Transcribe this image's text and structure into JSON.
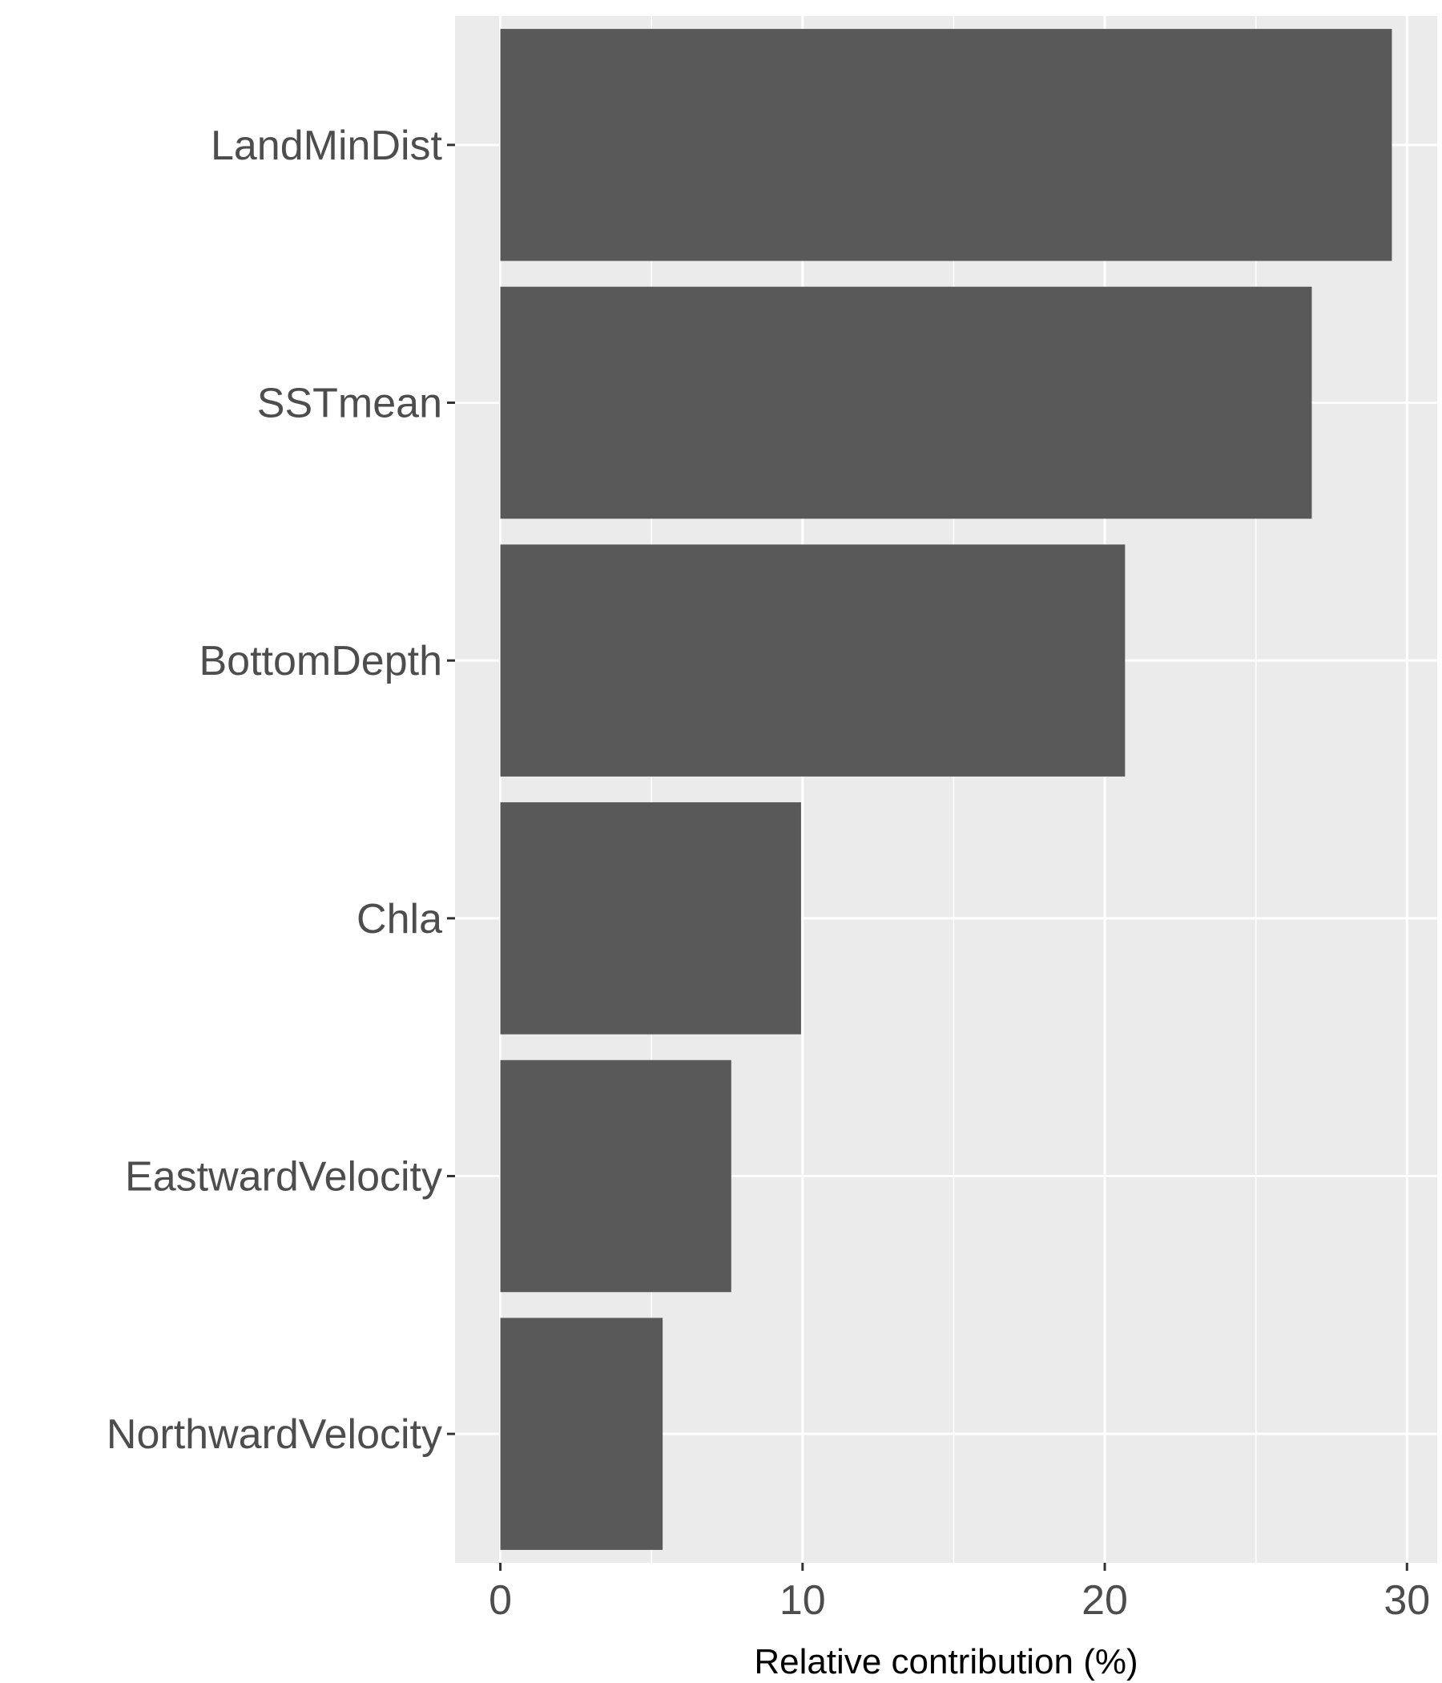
{
  "chart_data": {
    "type": "bar",
    "orientation": "horizontal",
    "categories": [
      "LandMinDist",
      "SSTmean",
      "BottomDepth",
      "Chla",
      "EastwardVelocity",
      "NorthwardVelocity"
    ],
    "values": [
      29.5,
      26.85,
      20.67,
      9.95,
      7.64,
      5.37
    ],
    "xlabel": "Relative contribution (%)",
    "ylabel": "",
    "xlim": [
      -1.5,
      31.0
    ],
    "x_ticks": [
      0,
      10,
      20,
      30
    ],
    "x_minor_ticks": [
      5,
      15,
      25
    ],
    "grid": true,
    "colors": {
      "panel": "#ebebeb",
      "grid": "#ffffff",
      "bar": "#595959",
      "tick": "#333333",
      "tick_label": "#4d4d4d",
      "axis_title": "#000000"
    }
  }
}
